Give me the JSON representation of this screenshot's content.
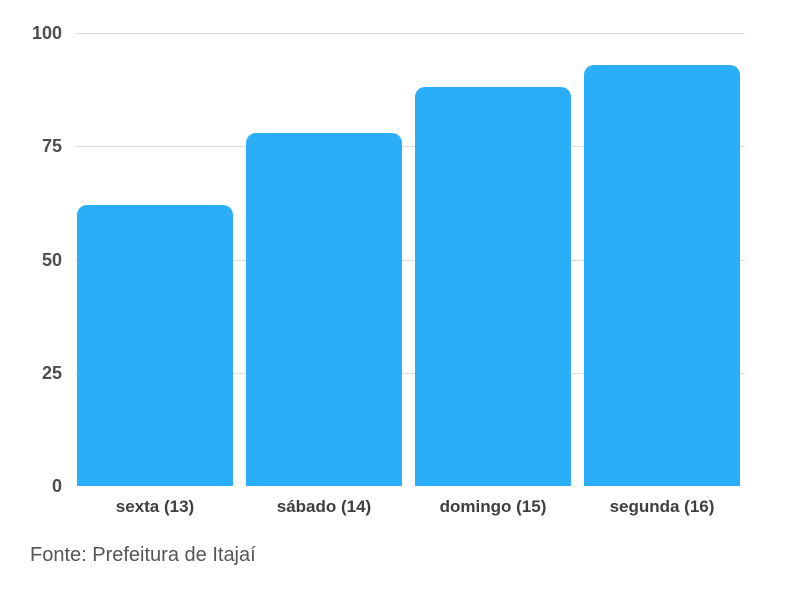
{
  "chart_data": {
    "type": "bar",
    "categories": [
      "sexta (13)",
      "sábado (14)",
      "domingo (15)",
      "segunda (16)"
    ],
    "values": [
      62,
      78,
      88,
      93
    ],
    "title": "",
    "xlabel": "",
    "ylabel": "",
    "ylim": [
      0,
      100
    ],
    "yticks": [
      0,
      25,
      50,
      75,
      100
    ],
    "grid": true,
    "legend_position": "none",
    "bar_color": "#29aef7",
    "gridline_color": "#dcdcdc",
    "tick_label_color": "#4e4e50",
    "category_label_color": "#3f3f42"
  },
  "footer": {
    "source_label": "Fonte: Prefeitura de Itajaí",
    "color": "#55565a"
  }
}
